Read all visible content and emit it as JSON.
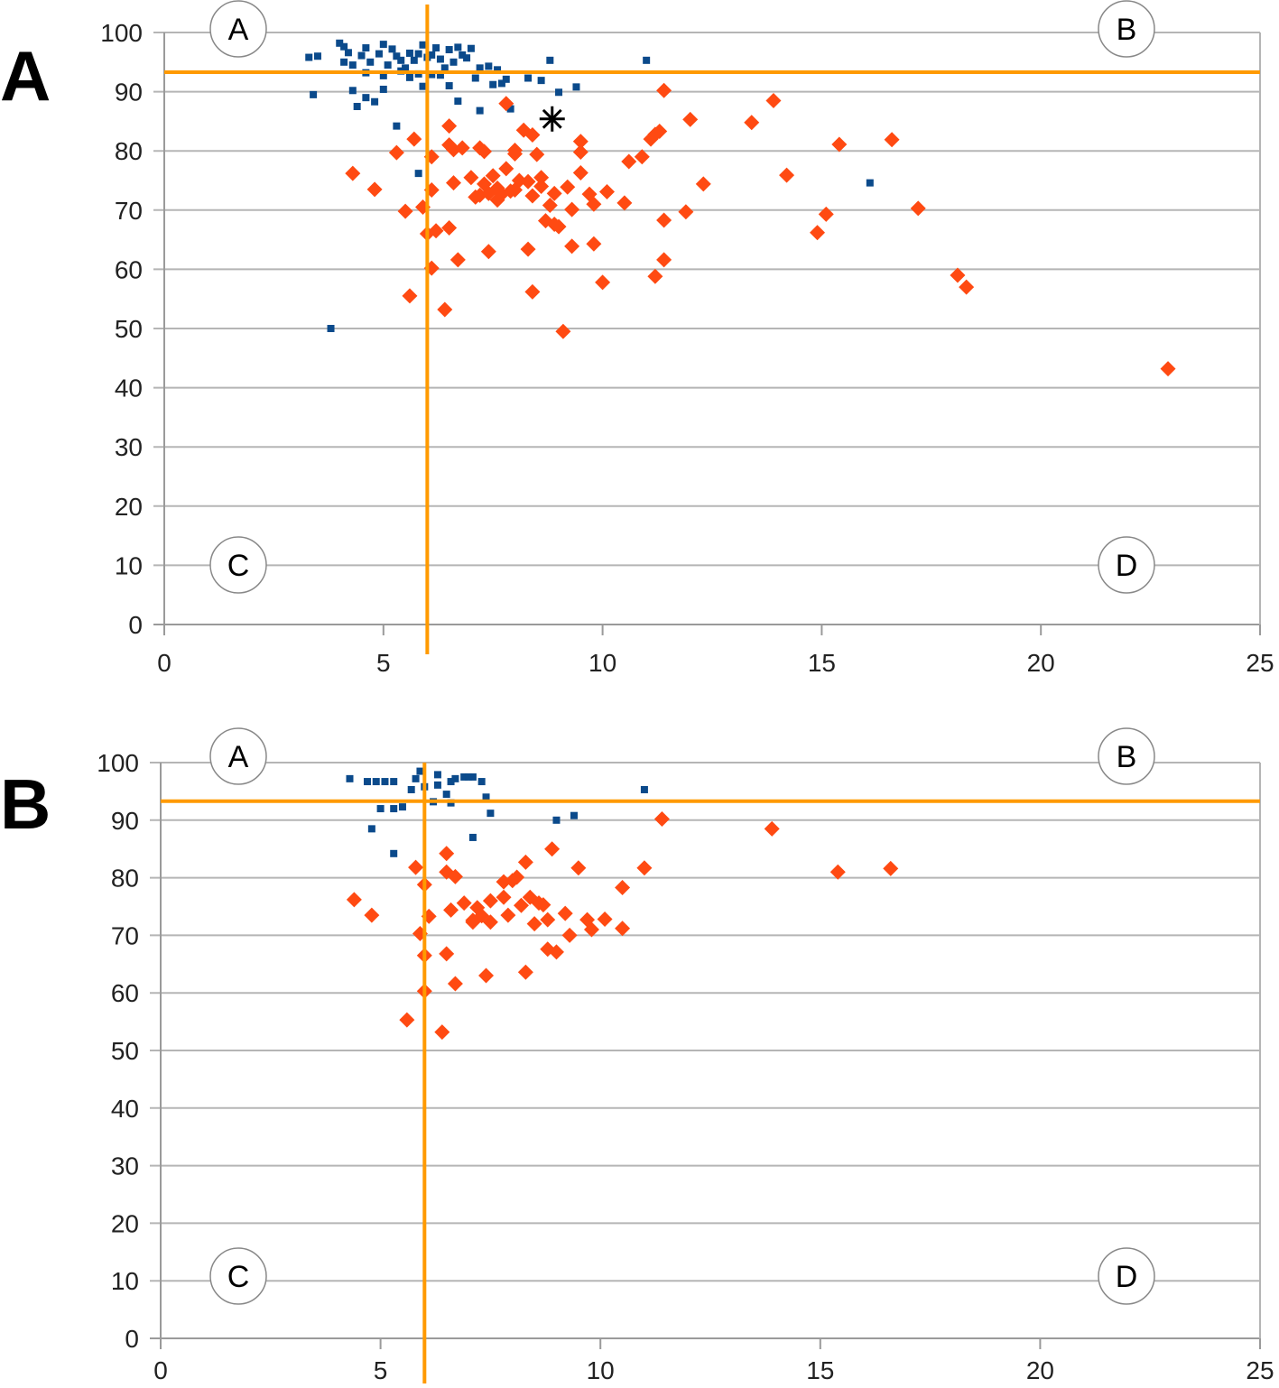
{
  "panels": [
    {
      "label": "A"
    },
    {
      "label": "B"
    }
  ],
  "colors": {
    "blue": "#0b4a8b",
    "red": "#ff4a12",
    "orange": "#ff9a00",
    "grid": "#b5b5b5",
    "axis": "#9a9a9a"
  },
  "chart_data": [
    {
      "type": "scatter",
      "title": "",
      "panel_label": "A",
      "xlabel": "",
      "ylabel": "",
      "xlim": [
        0,
        25
      ],
      "ylim": [
        0,
        100
      ],
      "x_ticks": [
        "0",
        "5",
        "10",
        "15",
        "20",
        "25"
      ],
      "y_ticks": [
        "0",
        "10",
        "20",
        "30",
        "40",
        "50",
        "60",
        "70",
        "80",
        "90",
        "100"
      ],
      "grid": "horizontal",
      "threshold_lines": {
        "x": 6,
        "y": 93.3
      },
      "quadrant_labels": [
        "A",
        "B",
        "C",
        "D"
      ],
      "annotation": {
        "marker": "star",
        "x": 8.85,
        "y": 85.4
      },
      "series": [
        {
          "name": "blue",
          "marker": "square",
          "color": "#0b4a8b",
          "points": [
            [
              3.3,
              95.8
            ],
            [
              3.5,
              96
            ],
            [
              3.4,
              89.5
            ],
            [
              4.0,
              98.2
            ],
            [
              4.1,
              97.6
            ],
            [
              4.2,
              96.6
            ],
            [
              4.1,
              95
            ],
            [
              4.3,
              94.5
            ],
            [
              4.5,
              96.1
            ],
            [
              4.6,
              97.4
            ],
            [
              4.7,
              95
            ],
            [
              4.9,
              96.4
            ],
            [
              5.0,
              98
            ],
            [
              5.1,
              94.5
            ],
            [
              5.2,
              97.2
            ],
            [
              5.3,
              96
            ],
            [
              5.4,
              95.3
            ],
            [
              5.5,
              94
            ],
            [
              5.6,
              96.5
            ],
            [
              5.7,
              95.3
            ],
            [
              5.8,
              96.4
            ],
            [
              5.9,
              97.9
            ],
            [
              6.0,
              95.8
            ],
            [
              6.1,
              96.2
            ],
            [
              6.2,
              97.4
            ],
            [
              6.3,
              95.5
            ],
            [
              6.4,
              94
            ],
            [
              6.5,
              97.1
            ],
            [
              6.6,
              95
            ],
            [
              6.7,
              97.5
            ],
            [
              6.8,
              96.2
            ],
            [
              6.9,
              95.7
            ],
            [
              7.0,
              97.3
            ],
            [
              7.2,
              94
            ],
            [
              7.4,
              94.3
            ],
            [
              7.6,
              93.7
            ],
            [
              4.3,
              90.2
            ],
            [
              4.6,
              89
            ],
            [
              4.8,
              88.3
            ],
            [
              5.0,
              90.4
            ],
            [
              4.4,
              87.5
            ],
            [
              5.6,
              92.4
            ],
            [
              5.9,
              90.9
            ],
            [
              6.3,
              92.8
            ],
            [
              6.5,
              91
            ],
            [
              6.7,
              88.4
            ],
            [
              7.1,
              92.3
            ],
            [
              7.2,
              86.8
            ],
            [
              7.5,
              91.2
            ],
            [
              7.8,
              92.1
            ],
            [
              7.9,
              87.1
            ],
            [
              8.3,
              92.3
            ],
            [
              8.6,
              91.9
            ],
            [
              8.8,
              95.3
            ],
            [
              9.0,
              89.9
            ],
            [
              9.4,
              90.8
            ],
            [
              11.0,
              95.3
            ],
            [
              5.3,
              84.2
            ],
            [
              5.8,
              76.2
            ],
            [
              16.1,
              74.6
            ],
            [
              3.8,
              50
            ],
            [
              4.6,
              93.2
            ],
            [
              5.0,
              92.7
            ],
            [
              5.4,
              93.5
            ],
            [
              5.8,
              93
            ],
            [
              6.1,
              92.9
            ],
            [
              7.7,
              91.4
            ]
          ]
        },
        {
          "name": "red",
          "marker": "diamond",
          "color": "#ff4a12",
          "points": [
            [
              4.3,
              76.2
            ],
            [
              4.8,
              73.5
            ],
            [
              5.3,
              79.7
            ],
            [
              5.5,
              69.8
            ],
            [
              5.6,
              55.5
            ],
            [
              5.7,
              82
            ],
            [
              5.9,
              70.5
            ],
            [
              6.0,
              66
            ],
            [
              6.1,
              79
            ],
            [
              6.1,
              73.4
            ],
            [
              6.1,
              60.2
            ],
            [
              6.2,
              66.5
            ],
            [
              6.4,
              53.2
            ],
            [
              6.5,
              84.2
            ],
            [
              6.5,
              81
            ],
            [
              6.6,
              80.2
            ],
            [
              6.5,
              67
            ],
            [
              6.6,
              74.6
            ],
            [
              6.7,
              61.6
            ],
            [
              6.8,
              80.5
            ],
            [
              7.0,
              75.5
            ],
            [
              7.2,
              80.5
            ],
            [
              7.2,
              72.5
            ],
            [
              7.3,
              79.9
            ],
            [
              7.3,
              74.4
            ],
            [
              7.4,
              72.8
            ],
            [
              7.4,
              63
            ],
            [
              7.5,
              75.8
            ],
            [
              7.6,
              73.7
            ],
            [
              7.7,
              72.7
            ],
            [
              7.8,
              77
            ],
            [
              7.8,
              88
            ],
            [
              7.9,
              73.2
            ],
            [
              8.0,
              79.5
            ],
            [
              8.0,
              80.1
            ],
            [
              8.1,
              75
            ],
            [
              8.2,
              83.5
            ],
            [
              8.3,
              74.8
            ],
            [
              8.3,
              63.4
            ],
            [
              8.4,
              82.7
            ],
            [
              8.4,
              56.2
            ],
            [
              8.5,
              79.4
            ],
            [
              8.6,
              75.5
            ],
            [
              8.7,
              68.2
            ],
            [
              8.8,
              70.8
            ],
            [
              8.9,
              72.8
            ],
            [
              9.0,
              67.2
            ],
            [
              9.1,
              49.5
            ],
            [
              9.2,
              73.9
            ],
            [
              9.3,
              70.1
            ],
            [
              9.3,
              63.9
            ],
            [
              9.5,
              81.6
            ],
            [
              9.5,
              79.8
            ],
            [
              9.5,
              76.3
            ],
            [
              9.7,
              72.7
            ],
            [
              9.8,
              71
            ],
            [
              9.8,
              64.3
            ],
            [
              10.0,
              57.8
            ],
            [
              10.1,
              73.1
            ],
            [
              10.5,
              71.2
            ],
            [
              10.6,
              78.2
            ],
            [
              10.9,
              79
            ],
            [
              11.1,
              82
            ],
            [
              11.2,
              82.8
            ],
            [
              11.2,
              58.8
            ],
            [
              11.3,
              83.3
            ],
            [
              11.4,
              68.3
            ],
            [
              11.4,
              61.6
            ],
            [
              11.4,
              90.2
            ],
            [
              11.9,
              69.7
            ],
            [
              12.0,
              85.3
            ],
            [
              12.3,
              74.4
            ],
            [
              13.4,
              84.8
            ],
            [
              13.9,
              88.5
            ],
            [
              14.2,
              75.9
            ],
            [
              14.9,
              66.2
            ],
            [
              15.1,
              69.3
            ],
            [
              15.4,
              81.1
            ],
            [
              16.6,
              81.9
            ],
            [
              17.2,
              70.3
            ],
            [
              18.1,
              59
            ],
            [
              18.3,
              57
            ],
            [
              22.9,
              43.2
            ],
            [
              8.4,
              72.4
            ],
            [
              8.6,
              74
            ],
            [
              8.0,
              73.4
            ],
            [
              8.9,
              67.6
            ],
            [
              7.6,
              71.7
            ],
            [
              7.1,
              72.2
            ]
          ]
        }
      ]
    },
    {
      "type": "scatter",
      "title": "",
      "panel_label": "B",
      "xlabel": "",
      "ylabel": "",
      "xlim": [
        0,
        25
      ],
      "ylim": [
        0,
        100
      ],
      "x_ticks": [
        "0",
        "5",
        "10",
        "15",
        "20",
        "25"
      ],
      "y_ticks": [
        "0",
        "10",
        "20",
        "30",
        "40",
        "50",
        "60",
        "70",
        "80",
        "90",
        "100"
      ],
      "grid": "horizontal",
      "threshold_lines": {
        "x": 6,
        "y": 93.3
      },
      "quadrant_labels": [
        "A",
        "B",
        "C",
        "D"
      ],
      "series": [
        {
          "name": "blue",
          "marker": "square",
          "color": "#0b4a8b",
          "points": [
            [
              4.3,
              97.2
            ],
            [
              4.7,
              96.7
            ],
            [
              4.9,
              96.7
            ],
            [
              5.1,
              96.7
            ],
            [
              5.3,
              96.7
            ],
            [
              5.8,
              97.2
            ],
            [
              5.9,
              98.5
            ],
            [
              6.3,
              97.9
            ],
            [
              6.6,
              96.7
            ],
            [
              6.7,
              97.2
            ],
            [
              6.9,
              97.5
            ],
            [
              7.0,
              97.5
            ],
            [
              7.1,
              97.5
            ],
            [
              7.3,
              96.7
            ],
            [
              5.7,
              95.3
            ],
            [
              6.0,
              95.8
            ],
            [
              6.3,
              96.1
            ],
            [
              6.5,
              94.5
            ],
            [
              7.4,
              94
            ],
            [
              6.2,
              93.2
            ],
            [
              6.6,
              93
            ],
            [
              4.8,
              88.5
            ],
            [
              5.0,
              92
            ],
            [
              5.3,
              92
            ],
            [
              5.5,
              92.3
            ],
            [
              5.3,
              84.2
            ],
            [
              7.1,
              87
            ],
            [
              7.5,
              91.2
            ],
            [
              9.0,
              90
            ],
            [
              9.4,
              90.8
            ],
            [
              11.0,
              95.3
            ]
          ]
        },
        {
          "name": "red",
          "marker": "diamond",
          "color": "#ff4a12",
          "points": [
            [
              4.4,
              76.2
            ],
            [
              4.8,
              73.5
            ],
            [
              5.8,
              81.8
            ],
            [
              5.6,
              55.3
            ],
            [
              5.9,
              70.3
            ],
            [
              6.0,
              78.8
            ],
            [
              6.1,
              73.3
            ],
            [
              6.0,
              66.5
            ],
            [
              6.0,
              60.3
            ],
            [
              6.4,
              53.2
            ],
            [
              6.5,
              84.2
            ],
            [
              6.5,
              81
            ],
            [
              6.7,
              80.2
            ],
            [
              6.5,
              66.8
            ],
            [
              6.6,
              74.4
            ],
            [
              6.7,
              61.6
            ],
            [
              6.9,
              75.6
            ],
            [
              7.1,
              72.3
            ],
            [
              7.2,
              74.8
            ],
            [
              7.3,
              73.4
            ],
            [
              7.4,
              63
            ],
            [
              7.5,
              76
            ],
            [
              7.5,
              72.3
            ],
            [
              7.8,
              76.6
            ],
            [
              7.8,
              79.3
            ],
            [
              7.9,
              73.5
            ],
            [
              8.0,
              79.5
            ],
            [
              8.1,
              80.1
            ],
            [
              8.2,
              75.2
            ],
            [
              8.3,
              82.7
            ],
            [
              8.3,
              63.6
            ],
            [
              8.4,
              76.6
            ],
            [
              8.5,
              72
            ],
            [
              8.6,
              75.6
            ],
            [
              8.7,
              75.3
            ],
            [
              8.8,
              72.7
            ],
            [
              8.8,
              67.6
            ],
            [
              8.9,
              85
            ],
            [
              9.0,
              67.1
            ],
            [
              9.2,
              73.8
            ],
            [
              9.3,
              70
            ],
            [
              9.5,
              81.7
            ],
            [
              9.7,
              72.7
            ],
            [
              9.8,
              71
            ],
            [
              10.1,
              72.8
            ],
            [
              10.5,
              71.2
            ],
            [
              10.5,
              78.3
            ],
            [
              11.0,
              81.7
            ],
            [
              11.4,
              90.2
            ],
            [
              13.9,
              88.5
            ],
            [
              15.4,
              81
            ],
            [
              16.6,
              81.6
            ],
            [
              7.1,
              72.6
            ]
          ]
        }
      ]
    }
  ]
}
